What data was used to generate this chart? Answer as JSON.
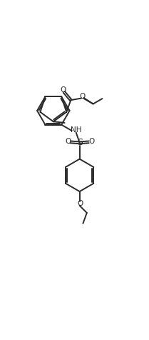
{
  "bg_color": "#ffffff",
  "line_color": "#2a2a2a",
  "line_width": 1.4,
  "figsize": [
    2.09,
    4.76
  ],
  "dpi": 100,
  "xlim": [
    0,
    10
  ],
  "ylim": [
    0,
    24
  ]
}
